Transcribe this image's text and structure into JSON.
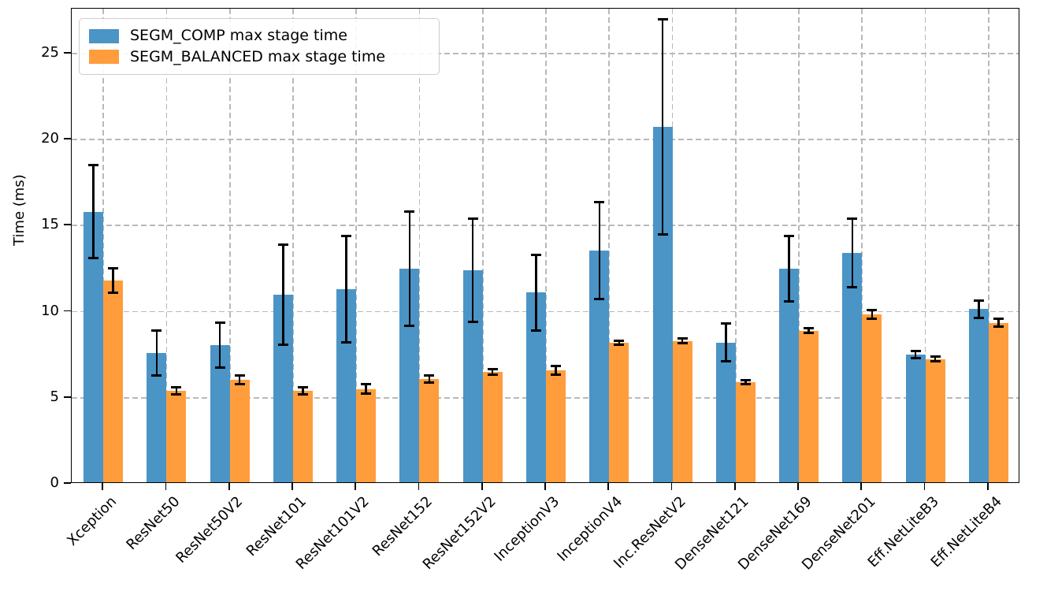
{
  "figure": {
    "ylabel": "Time (ms)"
  },
  "chart_data": {
    "type": "bar",
    "title": "",
    "xlabel": "",
    "ylabel": "Time (ms)",
    "ylim": [
      0,
      27.6
    ],
    "yticks": [
      0,
      5,
      10,
      15,
      20,
      25
    ],
    "grid": "dashed, both axes",
    "legend_position": "upper left",
    "bar_colors": {
      "segm_comp": "#4b94c6",
      "segm_balanced": "#ff9d3c"
    },
    "error_bar_color": "#000000",
    "categories": [
      "Xception",
      "ResNet50",
      "ResNet50V2",
      "ResNet101",
      "ResNet101V2",
      "ResNet152",
      "ResNet152V2",
      "InceptionV3",
      "InceptionV4",
      "Inc.ResNetV2",
      "DenseNet121",
      "DenseNet169",
      "DenseNet201",
      "Eff.NetLiteB3",
      "Eff.NetLiteB4"
    ],
    "series": [
      {
        "name": "SEGM_COMP max stage time",
        "color": "#4b94c6",
        "values": [
          15.8,
          7.6,
          8.05,
          11.0,
          11.3,
          12.5,
          12.4,
          11.1,
          13.55,
          20.75,
          8.2,
          12.5,
          13.4,
          7.5,
          10.15
        ],
        "errors": [
          2.7,
          1.3,
          1.3,
          2.9,
          3.1,
          3.3,
          3.0,
          2.2,
          2.8,
          6.25,
          1.1,
          1.9,
          2.0,
          0.2,
          0.5
        ]
      },
      {
        "name": "SEGM_BALANCED max stage time",
        "color": "#ff9d3c",
        "values": [
          11.8,
          5.4,
          6.05,
          5.4,
          5.5,
          6.1,
          6.5,
          6.6,
          8.2,
          8.3,
          5.9,
          8.9,
          9.85,
          7.25,
          9.35
        ],
        "errors": [
          0.7,
          0.2,
          0.25,
          0.2,
          0.27,
          0.2,
          0.15,
          0.25,
          0.1,
          0.15,
          0.1,
          0.15,
          0.25,
          0.12,
          0.22
        ]
      }
    ]
  }
}
